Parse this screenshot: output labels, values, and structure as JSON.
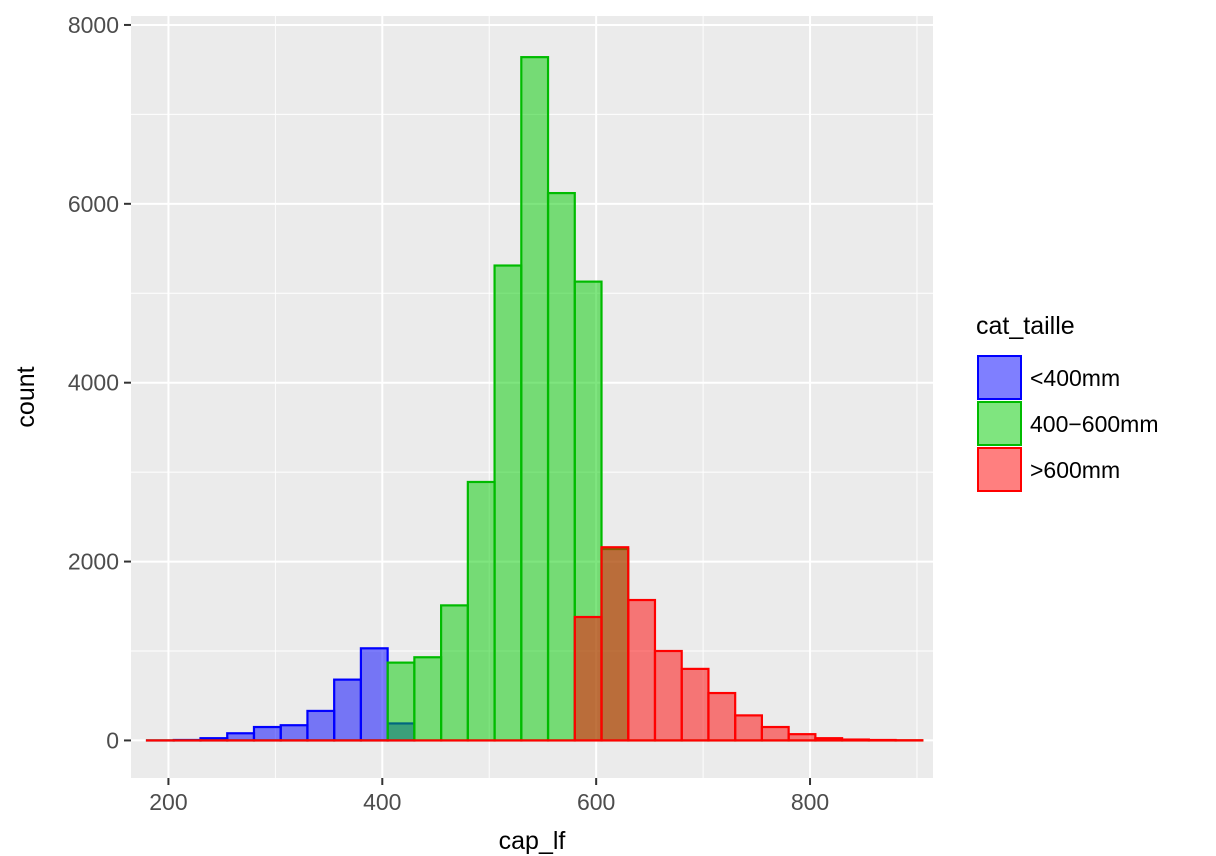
{
  "chart_data": {
    "type": "histogram",
    "xlabel": "cap_lf",
    "ylabel": "count",
    "xlim": [
      165,
      915
    ],
    "ylim": [
      -420,
      8100
    ],
    "x_ticks": [
      200,
      400,
      600,
      800
    ],
    "x_tick_labels": [
      "200",
      "400",
      "600",
      "800"
    ],
    "y_ticks": [
      0,
      2000,
      4000,
      6000,
      8000
    ],
    "y_tick_labels": [
      "0",
      "2000",
      "4000",
      "6000",
      "8000"
    ],
    "bin_width": 25,
    "grid": true,
    "legend": {
      "title": "cat_taille",
      "position": "right",
      "items": [
        "<400mm",
        "400−600mm",
        ">600mm"
      ]
    },
    "series": [
      {
        "name": "<400mm",
        "fill": "#0000ff",
        "stroke": "#0000ff",
        "bin_starts": [
          180,
          205,
          230,
          255,
          280,
          305,
          330,
          355,
          380,
          405
        ],
        "counts": [
          0,
          5,
          25,
          80,
          150,
          170,
          330,
          680,
          1030,
          190
        ]
      },
      {
        "name": "400−600mm",
        "fill": "#00cc00",
        "stroke": "#00bb00",
        "bin_starts": [
          180,
          205,
          230,
          255,
          280,
          305,
          330,
          355,
          380,
          405,
          430,
          455,
          480,
          505,
          530,
          555,
          580,
          605,
          630,
          655,
          680,
          705,
          730,
          755,
          780,
          805,
          830,
          855,
          880
        ],
        "counts": [
          0,
          0,
          0,
          0,
          0,
          0,
          0,
          0,
          0,
          870,
          930,
          1510,
          2890,
          5310,
          7640,
          6120,
          5130,
          2140,
          0,
          0,
          0,
          0,
          0,
          0,
          0,
          0,
          0,
          0,
          0
        ]
      },
      {
        "name": ">600mm",
        "fill": "#ff0000",
        "stroke": "#ff0000",
        "bin_starts": [
          180,
          205,
          230,
          255,
          280,
          305,
          330,
          355,
          380,
          405,
          430,
          455,
          480,
          505,
          530,
          555,
          580,
          605,
          630,
          655,
          680,
          705,
          730,
          755,
          780,
          805,
          830,
          855,
          880
        ],
        "counts": [
          0,
          0,
          0,
          0,
          0,
          0,
          0,
          0,
          0,
          0,
          0,
          0,
          0,
          0,
          0,
          0,
          1380,
          2160,
          1570,
          1000,
          800,
          530,
          280,
          150,
          70,
          25,
          10,
          5,
          2
        ]
      }
    ]
  }
}
